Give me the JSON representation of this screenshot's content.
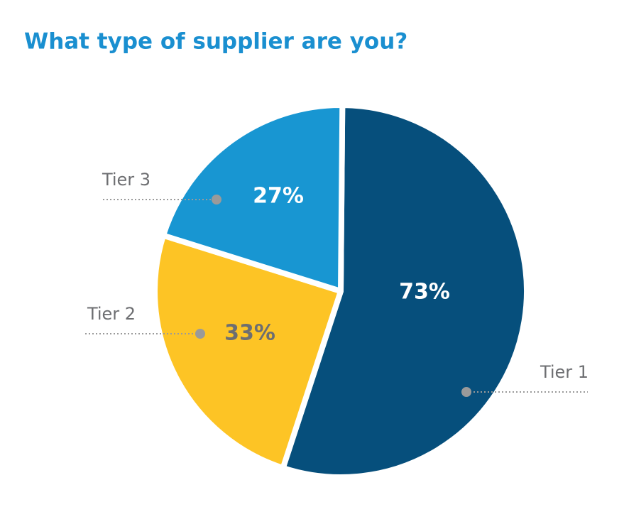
{
  "chart_data": {
    "type": "pie",
    "title": "What type of supplier are you?",
    "categories": [
      "Tier 1",
      "Tier 2",
      "Tier 3"
    ],
    "values": [
      73,
      33,
      27
    ],
    "value_labels": [
      "73%",
      "33%",
      "27%"
    ],
    "colors": [
      "#064f7c",
      "#fdc425",
      "#1896d2"
    ],
    "label_colors": [
      "#ffffff",
      "#6d6e71",
      "#ffffff"
    ]
  }
}
